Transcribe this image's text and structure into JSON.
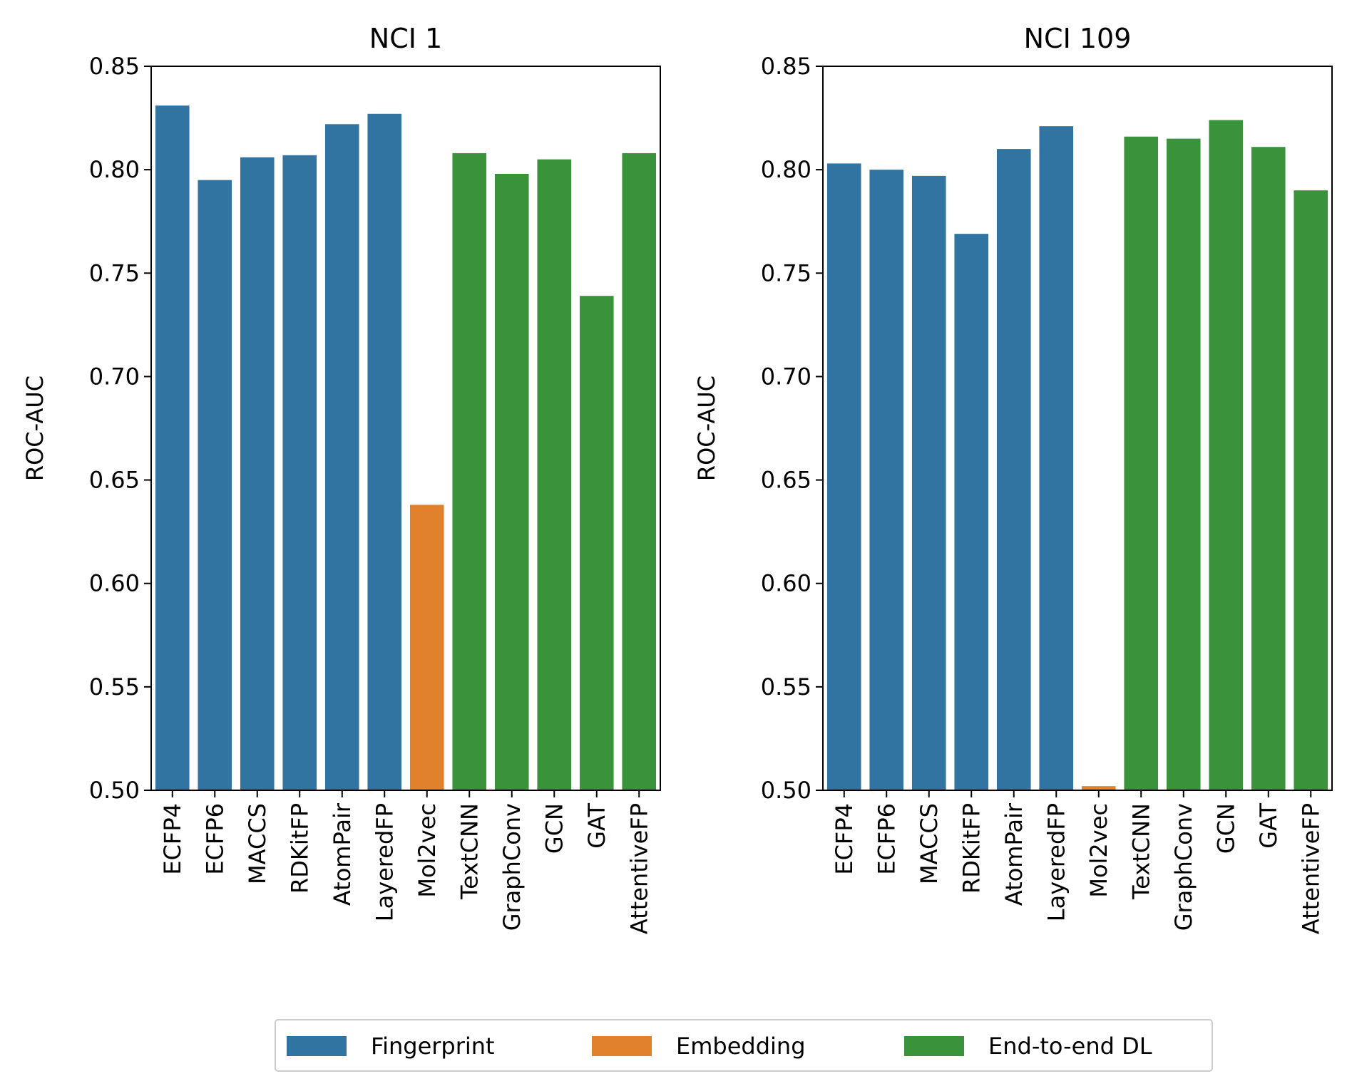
{
  "chart_data": [
    {
      "type": "bar",
      "title": "NCI 1",
      "xlabel": "",
      "ylabel": "ROC-AUC",
      "ylim": [
        0.5,
        0.85
      ],
      "yticks": [
        "0.50",
        "0.55",
        "0.60",
        "0.65",
        "0.70",
        "0.75",
        "0.80",
        "0.85"
      ],
      "grid": false,
      "categories": [
        "ECFP4",
        "ECFP6",
        "MACCS",
        "RDKitFP",
        "AtomPair",
        "LayeredFP",
        "Mol2vec",
        "TextCNN",
        "GraphConv",
        "GCN",
        "GAT",
        "AttentiveFP"
      ],
      "values": [
        0.831,
        0.795,
        0.806,
        0.807,
        0.822,
        0.827,
        0.638,
        0.808,
        0.798,
        0.805,
        0.739,
        0.808
      ],
      "groups": [
        "Fingerprint",
        "Fingerprint",
        "Fingerprint",
        "Fingerprint",
        "Fingerprint",
        "Fingerprint",
        "Embedding",
        "End-to-end DL",
        "End-to-end DL",
        "End-to-end DL",
        "End-to-end DL",
        "End-to-end DL"
      ]
    },
    {
      "type": "bar",
      "title": "NCI 109",
      "xlabel": "",
      "ylabel": "ROC-AUC",
      "ylim": [
        0.5,
        0.85
      ],
      "yticks": [
        "0.50",
        "0.55",
        "0.60",
        "0.65",
        "0.70",
        "0.75",
        "0.80",
        "0.85"
      ],
      "grid": false,
      "categories": [
        "ECFP4",
        "ECFP6",
        "MACCS",
        "RDKitFP",
        "AtomPair",
        "LayeredFP",
        "Mol2vec",
        "TextCNN",
        "GraphConv",
        "GCN",
        "GAT",
        "AttentiveFP"
      ],
      "values": [
        0.803,
        0.8,
        0.797,
        0.769,
        0.81,
        0.821,
        0.502,
        0.816,
        0.815,
        0.824,
        0.811,
        0.79
      ],
      "groups": [
        "Fingerprint",
        "Fingerprint",
        "Fingerprint",
        "Fingerprint",
        "Fingerprint",
        "Fingerprint",
        "Embedding",
        "End-to-end DL",
        "End-to-end DL",
        "End-to-end DL",
        "End-to-end DL",
        "End-to-end DL"
      ]
    }
  ],
  "legend": {
    "placement": "bottom-center",
    "items": [
      {
        "label": "Fingerprint",
        "color": "#3274a1"
      },
      {
        "label": "Embedding",
        "color": "#e1812c"
      },
      {
        "label": "End-to-end DL",
        "color": "#3a923a"
      }
    ]
  }
}
